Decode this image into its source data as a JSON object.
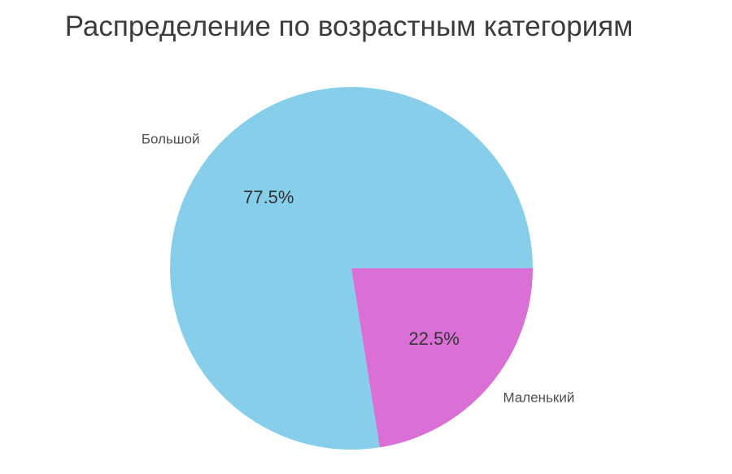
{
  "chart_data": {
    "type": "pie",
    "title": "Распределение по возрастным категориям",
    "slices": [
      {
        "label": "Большой",
        "value": 77.5,
        "pct_label": "77.5%",
        "color": "#87CEEB"
      },
      {
        "label": "Маленький",
        "value": 22.5,
        "pct_label": "22.5%",
        "color": "#DA70D6"
      }
    ],
    "start_angle_deg": 0,
    "counterclock": true,
    "labels_position": "outside",
    "percent_position": "inside",
    "legend": "none",
    "background_color": "#FFFFFF",
    "title_color": "#3C3C3C",
    "percent_text_color": "#333333",
    "label_text_color": "#4D4D4D"
  }
}
